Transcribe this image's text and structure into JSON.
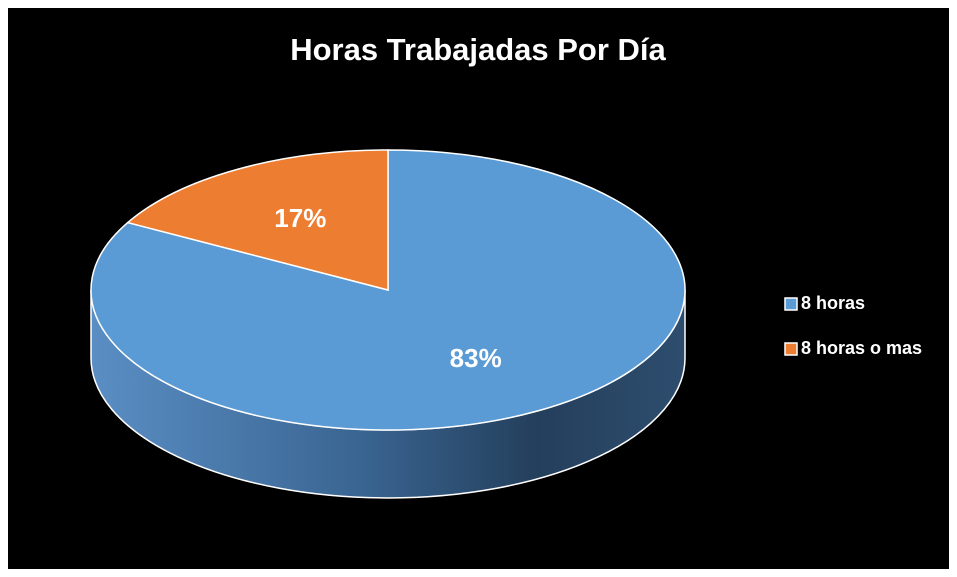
{
  "chart_data": {
    "type": "pie",
    "title": "Horas Trabajadas Por Día",
    "categories": [
      "8 horas",
      "8 horas o mas"
    ],
    "values": [
      83,
      17
    ],
    "value_labels": [
      "83%",
      "17%"
    ],
    "colors": [
      "#5b9bd5",
      "#ed7d31"
    ],
    "legend": "right"
  }
}
